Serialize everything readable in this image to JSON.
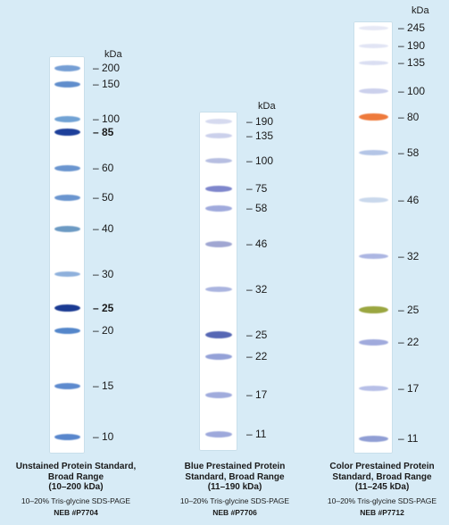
{
  "unit": "kDa",
  "ladders": [
    {
      "id": "unstained",
      "caption": {
        "title_lines": [
          "Unstained Protein Standard,",
          "Broad Range",
          "(10–200 kDa)"
        ],
        "method": "10–20% Tris-glycine SDS-PAGE",
        "catalog": "NEB #P7704"
      },
      "bands": [
        {
          "label": "200",
          "color": "#5f8fce",
          "strength": 0.75
        },
        {
          "label": "150",
          "color": "#4d80c6",
          "strength": 0.8
        },
        {
          "label": "100",
          "color": "#5590cc",
          "strength": 0.7
        },
        {
          "label": "85",
          "color": "#1d3f9a",
          "strength": 1.0,
          "bold": true
        },
        {
          "label": "60",
          "color": "#4d80c6",
          "strength": 0.7
        },
        {
          "label": "50",
          "color": "#4d80c6",
          "strength": 0.7
        },
        {
          "label": "40",
          "color": "#4f86b8",
          "strength": 0.7
        },
        {
          "label": "30",
          "color": "#6f9ad2",
          "strength": 0.6
        },
        {
          "label": "25",
          "color": "#1a3a92",
          "strength": 1.0,
          "bold": true
        },
        {
          "label": "20",
          "color": "#3f78c4",
          "strength": 0.8
        },
        {
          "label": "15",
          "color": "#4a7cc8",
          "strength": 0.8
        },
        {
          "label": "10",
          "color": "#4a7cc8",
          "strength": 0.85
        }
      ]
    },
    {
      "id": "blue",
      "caption": {
        "title_lines": [
          "Blue Prestained Protein",
          "Standard, Broad Range",
          "(11–190 kDa)"
        ],
        "method": "10–20% Tris-glycine SDS-PAGE",
        "catalog": "NEB #P7706"
      },
      "bands": [
        {
          "label": "190",
          "color": "#c7cdea",
          "strength": 0.5
        },
        {
          "label": "135",
          "color": "#b9c0e4",
          "strength": 0.5
        },
        {
          "label": "100",
          "color": "#a3add9",
          "strength": 0.6
        },
        {
          "label": "75",
          "color": "#6f78c6",
          "strength": 0.8
        },
        {
          "label": "58",
          "color": "#8e9ad6",
          "strength": 0.7
        },
        {
          "label": "46",
          "color": "#8d95c9",
          "strength": 0.7
        },
        {
          "label": "32",
          "color": "#97a3d8",
          "strength": 0.65
        },
        {
          "label": "25",
          "color": "#4d5fb0",
          "strength": 0.9
        },
        {
          "label": "22",
          "color": "#7f8fd0",
          "strength": 0.7
        },
        {
          "label": "17",
          "color": "#8e9bd6",
          "strength": 0.7
        },
        {
          "label": "11",
          "color": "#8a97d4",
          "strength": 0.7
        }
      ]
    },
    {
      "id": "color",
      "caption": {
        "title_lines": [
          "Color Prestained Protein",
          "Standard, Broad Range",
          "(11–245 kDa)"
        ],
        "method": "10–20% Tris-glycine SDS-PAGE",
        "catalog": "NEB #P7712"
      },
      "bands": [
        {
          "label": "245",
          "color": "#d8dcf0",
          "strength": 0.35
        },
        {
          "label": "190",
          "color": "#d3d8ef",
          "strength": 0.4
        },
        {
          "label": "135",
          "color": "#c9cfec",
          "strength": 0.4
        },
        {
          "label": "100",
          "color": "#b9bfe6",
          "strength": 0.5
        },
        {
          "label": "80",
          "color": "#ee7a3c",
          "strength": 1.0
        },
        {
          "label": "58",
          "color": "#9fb5e0",
          "strength": 0.6
        },
        {
          "label": "46",
          "color": "#b8cbe6",
          "strength": 0.55
        },
        {
          "label": "32",
          "color": "#9aa6dc",
          "strength": 0.65
        },
        {
          "label": "25",
          "color": "#9aa640",
          "strength": 1.0
        },
        {
          "label": "22",
          "color": "#8e9ad6",
          "strength": 0.7
        },
        {
          "label": "17",
          "color": "#a7b1e2",
          "strength": 0.65
        },
        {
          "label": "11",
          "color": "#7e8fce",
          "strength": 0.75
        }
      ]
    }
  ]
}
